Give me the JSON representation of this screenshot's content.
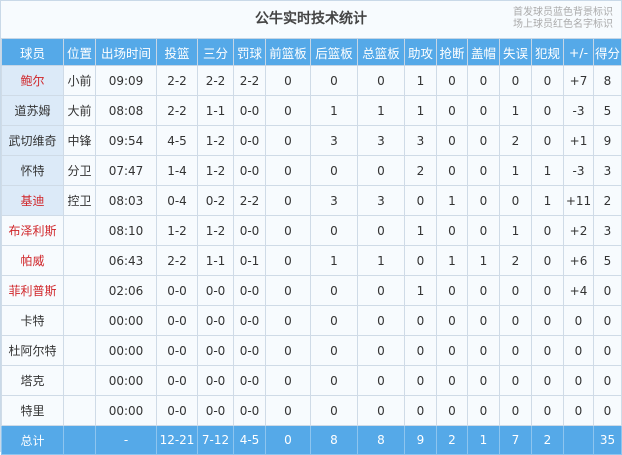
{
  "title": "公牛实时技术统计",
  "legend": [
    "首发球员蓝色背景标识",
    "场上球员红色名字标识"
  ],
  "colors": {
    "header": "#55a9e8",
    "starter_bg": "#dceaf8",
    "on_court_name": "#d0262a"
  },
  "headers": [
    "球员",
    "位置",
    "出场时间",
    "投篮",
    "三分",
    "罚球",
    "前篮板",
    "后篮板",
    "总篮板",
    "助攻",
    "抢断",
    "盖帽",
    "失误",
    "犯规",
    "+/-",
    "得分"
  ],
  "rows": [
    {
      "starter": true,
      "on_court": true,
      "cells": [
        "鲍尔",
        "小前",
        "09:09",
        "2-2",
        "2-2",
        "2-2",
        "0",
        "0",
        "0",
        "1",
        "0",
        "0",
        "0",
        "0",
        "+7",
        "8"
      ]
    },
    {
      "starter": true,
      "on_court": false,
      "cells": [
        "道苏姆",
        "大前",
        "08:08",
        "2-2",
        "1-1",
        "0-0",
        "0",
        "1",
        "1",
        "1",
        "0",
        "0",
        "1",
        "0",
        "-3",
        "5"
      ]
    },
    {
      "starter": true,
      "on_court": false,
      "cells": [
        "武切维奇",
        "中锋",
        "09:54",
        "4-5",
        "1-2",
        "0-0",
        "0",
        "3",
        "3",
        "3",
        "0",
        "0",
        "2",
        "0",
        "+1",
        "9"
      ]
    },
    {
      "starter": true,
      "on_court": false,
      "cells": [
        "怀特",
        "分卫",
        "07:47",
        "1-4",
        "1-2",
        "0-0",
        "0",
        "0",
        "0",
        "2",
        "0",
        "0",
        "1",
        "1",
        "-3",
        "3"
      ]
    },
    {
      "starter": true,
      "on_court": true,
      "cells": [
        "基迪",
        "控卫",
        "08:03",
        "0-4",
        "0-2",
        "2-2",
        "0",
        "3",
        "3",
        "0",
        "1",
        "0",
        "0",
        "1",
        "+11",
        "2"
      ]
    },
    {
      "starter": false,
      "on_court": true,
      "cells": [
        "布泽利斯",
        "",
        "08:10",
        "1-2",
        "1-2",
        "0-0",
        "0",
        "0",
        "0",
        "1",
        "0",
        "0",
        "1",
        "0",
        "+2",
        "3"
      ]
    },
    {
      "starter": false,
      "on_court": true,
      "cells": [
        "帕威",
        "",
        "06:43",
        "2-2",
        "1-1",
        "0-1",
        "0",
        "1",
        "1",
        "0",
        "1",
        "1",
        "2",
        "0",
        "+6",
        "5"
      ]
    },
    {
      "starter": false,
      "on_court": true,
      "cells": [
        "菲利普斯",
        "",
        "02:06",
        "0-0",
        "0-0",
        "0-0",
        "0",
        "0",
        "0",
        "1",
        "0",
        "0",
        "0",
        "0",
        "+4",
        "0"
      ]
    },
    {
      "starter": false,
      "on_court": false,
      "cells": [
        "卡特",
        "",
        "00:00",
        "0-0",
        "0-0",
        "0-0",
        "0",
        "0",
        "0",
        "0",
        "0",
        "0",
        "0",
        "0",
        "0",
        "0"
      ]
    },
    {
      "starter": false,
      "on_court": false,
      "cells": [
        "杜阿尔特",
        "",
        "00:00",
        "0-0",
        "0-0",
        "0-0",
        "0",
        "0",
        "0",
        "0",
        "0",
        "0",
        "0",
        "0",
        "0",
        "0"
      ]
    },
    {
      "starter": false,
      "on_court": false,
      "cells": [
        "塔克",
        "",
        "00:00",
        "0-0",
        "0-0",
        "0-0",
        "0",
        "0",
        "0",
        "0",
        "0",
        "0",
        "0",
        "0",
        "0",
        "0"
      ]
    },
    {
      "starter": false,
      "on_court": false,
      "cells": [
        "特里",
        "",
        "00:00",
        "0-0",
        "0-0",
        "0-0",
        "0",
        "0",
        "0",
        "0",
        "0",
        "0",
        "0",
        "0",
        "0",
        "0"
      ]
    }
  ],
  "total": [
    "总计",
    "",
    "-",
    "12-21",
    "7-12",
    "4-5",
    "0",
    "8",
    "8",
    "9",
    "2",
    "1",
    "7",
    "2",
    "",
    "35"
  ]
}
